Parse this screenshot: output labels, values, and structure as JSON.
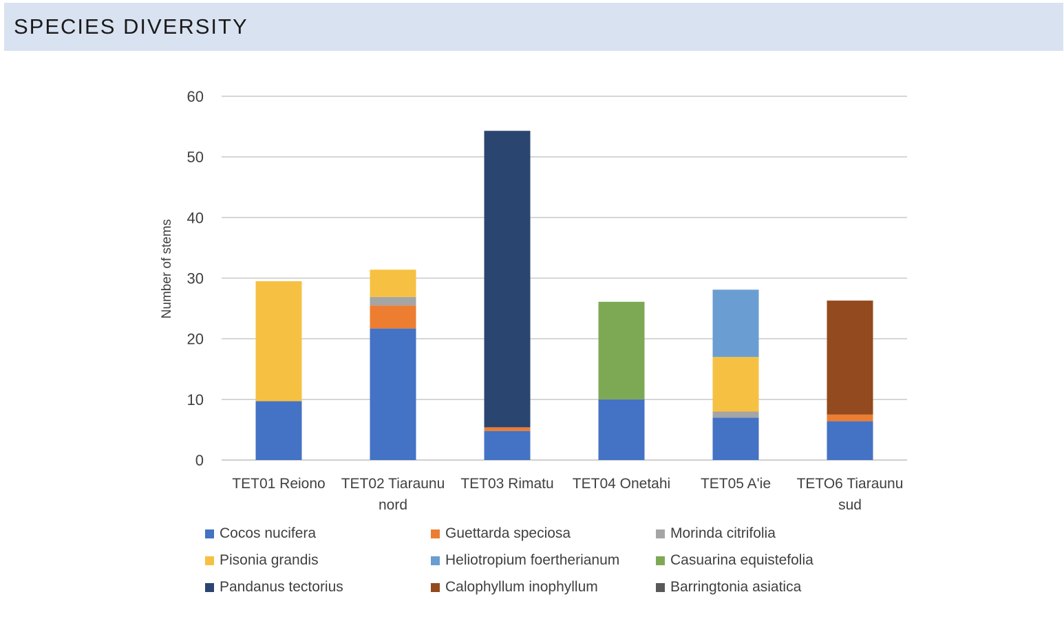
{
  "header": {
    "title": "SPECIES DIVERSITY"
  },
  "chart_data": {
    "type": "bar",
    "stacked": true,
    "title": "",
    "xlabel": "",
    "ylabel": "Number of stems",
    "ylim": [
      0,
      60
    ],
    "yticks": [
      0,
      10,
      20,
      30,
      40,
      50,
      60
    ],
    "grid": true,
    "legend_position": "bottom",
    "categories": [
      [
        "TET01 Reiono"
      ],
      [
        "TET02 Tiaraunu",
        "nord"
      ],
      [
        "TET03 Rimatu"
      ],
      [
        "TET04 Onetahi"
      ],
      [
        "TET05 A'ie"
      ],
      [
        "TETO6 Tiaraunu",
        "sud"
      ]
    ],
    "series": [
      {
        "name": "Cocos nucifera",
        "color": "#4472c4",
        "values": [
          9.7,
          21.7,
          4.8,
          10,
          7,
          6.4
        ]
      },
      {
        "name": "Guettarda speciosa",
        "color": "#ed7d31",
        "values": [
          0,
          3.8,
          0.6,
          0,
          0,
          1.1
        ]
      },
      {
        "name": "Morinda citrifolia",
        "color": "#a5a5a5",
        "values": [
          0,
          1.4,
          0,
          0,
          1,
          0
        ]
      },
      {
        "name": "Pisonia grandis",
        "color": "#f6c142",
        "values": [
          19.8,
          4.5,
          0,
          0,
          9,
          0
        ]
      },
      {
        "name": "Heliotropium foertherianum",
        "color": "#6a9ed3",
        "values": [
          0,
          0,
          0,
          0,
          11.1,
          0
        ]
      },
      {
        "name": "Casuarina equistefolia",
        "color": "#7ea954",
        "values": [
          0,
          0,
          0,
          16.1,
          0,
          0
        ]
      },
      {
        "name": "Pandanus tectorius",
        "color": "#2b4571",
        "values": [
          0,
          0,
          48.9,
          0,
          0,
          0
        ]
      },
      {
        "name": "Calophyllum inophyllum",
        "color": "#934a1e",
        "values": [
          0,
          0,
          0,
          0,
          0,
          18.8
        ]
      },
      {
        "name": "Barringtonia asiatica",
        "color": "#595959",
        "values": [
          0,
          0,
          0,
          0,
          0,
          0
        ]
      }
    ]
  }
}
